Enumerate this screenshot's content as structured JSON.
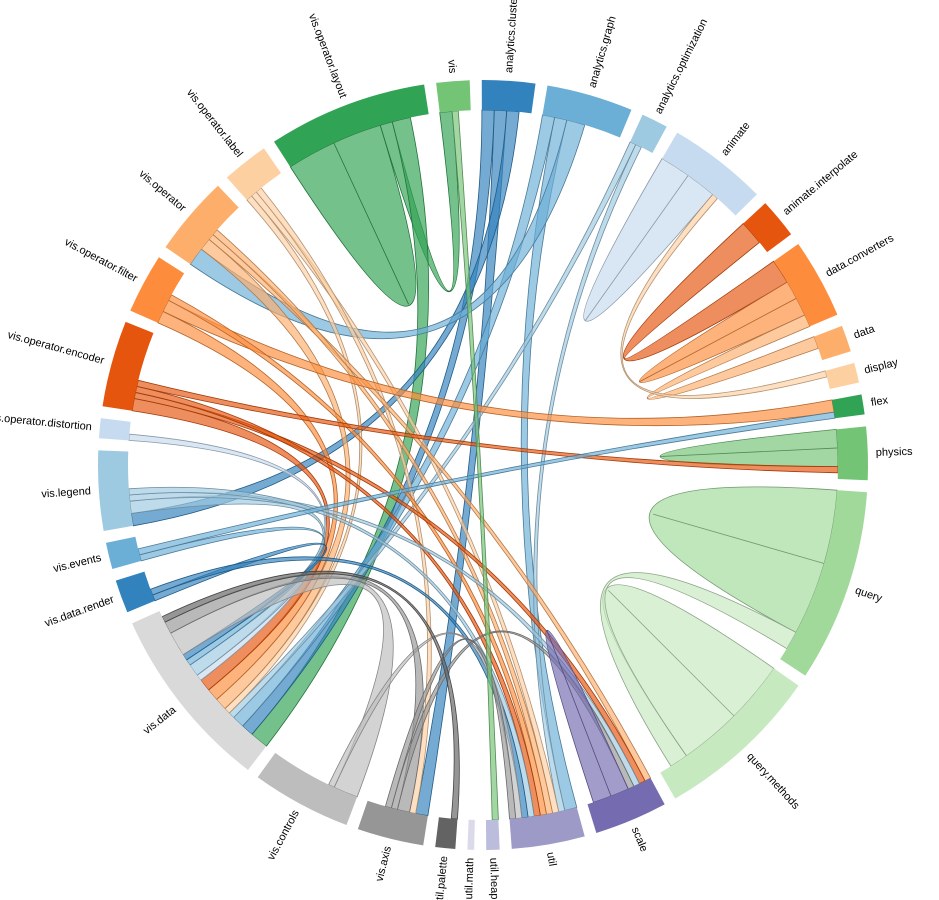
{
  "chart_data": {
    "type": "chord",
    "groups": [
      {
        "name": "vis",
        "color": "#74c476",
        "value": 5
      },
      {
        "name": "analytics.cluster",
        "color": "#3182bd",
        "value": 8
      },
      {
        "name": "analytics.graph",
        "color": "#6baed6",
        "value": 13
      },
      {
        "name": "analytics.optimization",
        "color": "#9ecae1",
        "value": 4
      },
      {
        "name": "animate",
        "color": "#c6dbef",
        "value": 15
      },
      {
        "name": "animate.interpolate",
        "color": "#e6550d",
        "value": 6
      },
      {
        "name": "data.converters",
        "color": "#fd8d3c",
        "value": 12
      },
      {
        "name": "data",
        "color": "#fdae6b",
        "value": 4
      },
      {
        "name": "display",
        "color": "#fdd0a2",
        "value": 3
      },
      {
        "name": "flex",
        "color": "#31a354",
        "value": 3
      },
      {
        "name": "physics",
        "color": "#74c476",
        "value": 8
      },
      {
        "name": "query",
        "color": "#a1d99b",
        "value": 29
      },
      {
        "name": "query.methods",
        "color": "#c7e9c0",
        "value": 25
      },
      {
        "name": "scale",
        "color": "#756bb1",
        "value": 11
      },
      {
        "name": "util",
        "color": "#9e9ac8",
        "value": 11
      },
      {
        "name": "util.heap",
        "color": "#bcbddc",
        "value": 2
      },
      {
        "name": "util.math",
        "color": "#dadaeb",
        "value": 1
      },
      {
        "name": "util.palette",
        "color": "#636363",
        "value": 3
      },
      {
        "name": "vis.axis",
        "color": "#969696",
        "value": 10
      },
      {
        "name": "vis.controls",
        "color": "#bdbdbd",
        "value": 15
      },
      {
        "name": "vis.data",
        "color": "#d9d9d9",
        "value": 28
      },
      {
        "name": "vis.data.render",
        "color": "#3182bd",
        "value": 5
      },
      {
        "name": "vis.events",
        "color": "#6baed6",
        "value": 4
      },
      {
        "name": "vis.legend",
        "color": "#9ecae1",
        "value": 12
      },
      {
        "name": "vis.operator.distortion",
        "color": "#c6dbef",
        "value": 3
      },
      {
        "name": "vis.operator.encoder",
        "color": "#e6550d",
        "value": 13
      },
      {
        "name": "vis.operator.filter",
        "color": "#fd8d3c",
        "value": 9
      },
      {
        "name": "vis.operator",
        "color": "#fdae6b",
        "value": 12
      },
      {
        "name": "vis.operator.label",
        "color": "#fdd0a2",
        "value": 7
      },
      {
        "name": "vis.operator.layout",
        "color": "#31a354",
        "value": 24
      }
    ],
    "links": [
      {
        "source": 11,
        "target": 11,
        "value": 12
      },
      {
        "source": 12,
        "target": 12,
        "value": 10
      },
      {
        "source": 12,
        "target": 11,
        "value": 3
      },
      {
        "source": 10,
        "target": 10,
        "value": 3
      },
      {
        "source": 4,
        "target": 4,
        "value": 5
      },
      {
        "source": 5,
        "target": 6,
        "value": 4
      },
      {
        "source": 6,
        "target": 6,
        "value": 3
      },
      {
        "source": 7,
        "target": 6,
        "value": 2
      },
      {
        "source": 8,
        "target": 4,
        "value": 1
      },
      {
        "source": 29,
        "target": 29,
        "value": 8
      },
      {
        "source": 29,
        "target": 0,
        "value": 2
      },
      {
        "source": 29,
        "target": 20,
        "value": 3
      },
      {
        "source": 1,
        "target": 20,
        "value": 2
      },
      {
        "source": 1,
        "target": 18,
        "value": 2
      },
      {
        "source": 1,
        "target": 23,
        "value": 2
      },
      {
        "source": 2,
        "target": 20,
        "value": 2
      },
      {
        "source": 2,
        "target": 14,
        "value": 2
      },
      {
        "source": 2,
        "target": 27,
        "value": 3
      },
      {
        "source": 3,
        "target": 20,
        "value": 1
      },
      {
        "source": 3,
        "target": 14,
        "value": 1
      },
      {
        "source": 28,
        "target": 20,
        "value": 1
      },
      {
        "source": 28,
        "target": 14,
        "value": 1
      },
      {
        "source": 28,
        "target": 18,
        "value": 1
      },
      {
        "source": 27,
        "target": 20,
        "value": 2
      },
      {
        "source": 27,
        "target": 13,
        "value": 1
      },
      {
        "source": 27,
        "target": 14,
        "value": 1
      },
      {
        "source": 26,
        "target": 20,
        "value": 2
      },
      {
        "source": 26,
        "target": 9,
        "value": 2
      },
      {
        "source": 26,
        "target": 14,
        "value": 1
      },
      {
        "source": 25,
        "target": 20,
        "value": 2
      },
      {
        "source": 25,
        "target": 13,
        "value": 1
      },
      {
        "source": 25,
        "target": 14,
        "value": 1
      },
      {
        "source": 25,
        "target": 10,
        "value": 1
      },
      {
        "source": 24,
        "target": 20,
        "value": 1
      },
      {
        "source": 23,
        "target": 20,
        "value": 2
      },
      {
        "source": 23,
        "target": 13,
        "value": 1
      },
      {
        "source": 23,
        "target": 14,
        "value": 1
      },
      {
        "source": 22,
        "target": 20,
        "value": 1
      },
      {
        "source": 22,
        "target": 9,
        "value": 1
      },
      {
        "source": 21,
        "target": 20,
        "value": 1
      },
      {
        "source": 21,
        "target": 14,
        "value": 1
      },
      {
        "source": 19,
        "target": 20,
        "value": 4
      },
      {
        "source": 19,
        "target": 14,
        "value": 1
      },
      {
        "source": 18,
        "target": 20,
        "value": 2
      },
      {
        "source": 18,
        "target": 13,
        "value": 1
      },
      {
        "source": 18,
        "target": 14,
        "value": 1
      },
      {
        "source": 13,
        "target": 13,
        "value": 3
      },
      {
        "source": 0,
        "target": 15,
        "value": 1
      },
      {
        "source": 17,
        "target": 20,
        "value": 1
      }
    ]
  }
}
